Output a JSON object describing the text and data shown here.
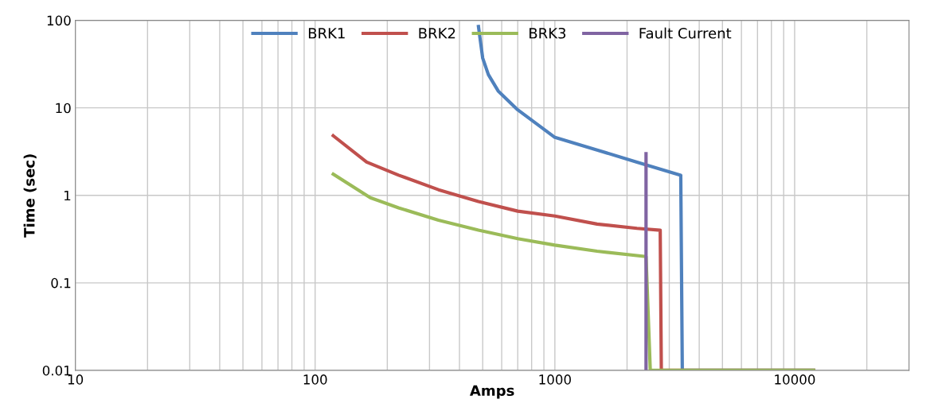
{
  "chart_data": {
    "type": "line",
    "xlabel": "Amps",
    "ylabel": "Time (sec)",
    "log": "xy",
    "grid": true,
    "legend": "top",
    "marker": "none",
    "xlim": [
      10,
      30000
    ],
    "ylim": [
      0.01,
      100
    ],
    "xticks": [
      10,
      {
        "value": 20,
        "label": null
      },
      {
        "value": 30,
        "label": null
      },
      {
        "value": 40,
        "label": null
      },
      {
        "value": 50,
        "label": null
      },
      {
        "value": 60,
        "label": null
      },
      {
        "value": 70,
        "label": null
      },
      {
        "value": 80,
        "label": null
      },
      {
        "value": 90,
        "label": null
      },
      100,
      {
        "value": 200,
        "label": null
      },
      {
        "value": 300,
        "label": null
      },
      {
        "value": 400,
        "label": null
      },
      {
        "value": 500,
        "label": null
      },
      {
        "value": 600,
        "label": null
      },
      {
        "value": 700,
        "label": null
      },
      {
        "value": 800,
        "label": null
      },
      {
        "value": 900,
        "label": null
      },
      1000,
      {
        "value": 2000,
        "label": null
      },
      {
        "value": 3000,
        "label": null
      },
      {
        "value": 4000,
        "label": null
      },
      {
        "value": 5000,
        "label": null
      },
      {
        "value": 6000,
        "label": null
      },
      {
        "value": 7000,
        "label": null
      },
      {
        "value": 8000,
        "label": null
      },
      {
        "value": 9000,
        "label": null
      },
      10000,
      {
        "value": 20000,
        "label": null
      },
      {
        "value": 30000,
        "label": null
      }
    ],
    "yticks": [
      0.01,
      0.1,
      1,
      10,
      100
    ],
    "series": [
      {
        "name": "BRK1",
        "color": "#4f81bd",
        "x": [
          480,
          500,
          528,
          580,
          700,
          1000,
          1500,
          2200,
          3350,
          3400,
          12000
        ],
        "values": [
          85,
          37,
          24,
          15.6,
          9.5,
          4.6,
          3.3,
          2.4,
          1.7,
          0.01,
          0.01
        ]
      },
      {
        "name": "BRK2",
        "color": "#c0504d",
        "x": [
          119,
          164,
          223,
          327,
          480,
          700,
          1000,
          1500,
          2200,
          2750,
          2780,
          12000
        ],
        "values": [
          4.8,
          2.4,
          1.7,
          1.16,
          0.85,
          0.66,
          0.58,
          0.47,
          0.42,
          0.4,
          0.01,
          0.01
        ]
      },
      {
        "name": "BRK3",
        "color": "#9bbb59",
        "x": [
          119,
          170,
          223,
          327,
          480,
          700,
          1000,
          1500,
          2400,
          2500,
          12000
        ],
        "values": [
          1.75,
          0.94,
          0.72,
          0.52,
          0.4,
          0.32,
          0.27,
          0.23,
          0.2,
          0.01,
          0.01
        ]
      },
      {
        "name": "Fault Current",
        "color": "#8064a2",
        "x": [
          2400,
          2400
        ],
        "values": [
          0.01,
          3
        ]
      }
    ]
  }
}
